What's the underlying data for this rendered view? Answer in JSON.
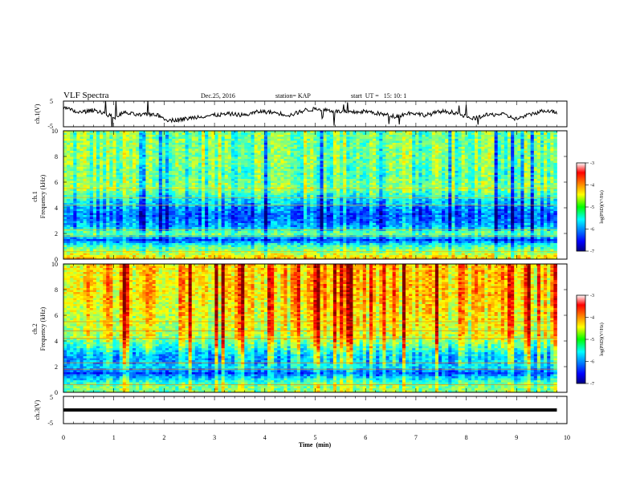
{
  "header": {
    "title": "VLF Spectra",
    "date": "Dec.25, 2016",
    "station": "station= KAP",
    "start": "start  UT =   15: 10: 1"
  },
  "chart_data": [
    {
      "type": "line",
      "ylabel": "ch.1(V)",
      "ylim": [
        -5,
        5
      ],
      "yticks": [
        5,
        -5
      ],
      "xlim": [
        0,
        10
      ],
      "trend_min": [
        0,
        0.3,
        0.6,
        0.8,
        1.0,
        1.2,
        1.5,
        1.8,
        2.1,
        2.4,
        2.7,
        3.0,
        3.3,
        3.6,
        3.9,
        4.2,
        4.5,
        4.8,
        5.1,
        5.4,
        5.7,
        6.0,
        6.3,
        6.6,
        6.9,
        7.2,
        7.5,
        7.8,
        8.1,
        8.4,
        8.7,
        9.0,
        9.3,
        9.6,
        9.8
      ],
      "trend_volts": [
        2.5,
        0.5,
        1.5,
        0.5,
        -1.5,
        0.5,
        -0.5,
        0.0,
        -2.5,
        -2.0,
        -1.0,
        -0.5,
        0.0,
        -0.5,
        1.0,
        0.5,
        -0.5,
        1.5,
        2.0,
        1.0,
        0.5,
        1.0,
        0.0,
        -1.0,
        0.5,
        -0.5,
        1.0,
        0.5,
        -2.0,
        -0.5,
        0.0,
        -2.0,
        0.0,
        1.5,
        0.5
      ]
    },
    {
      "type": "heatmap",
      "ylabel": "ch.1\nFrequency  (kHz)",
      "ylim": [
        0,
        10
      ],
      "yticks": [
        0,
        2,
        4,
        6,
        8,
        10
      ],
      "xlim": [
        0,
        9.8
      ],
      "colorbar": {
        "label": "log(PSD)(V²/Hz)",
        "range": [
          -7,
          -3
        ],
        "ticks": [
          -3,
          -4,
          -5,
          -6,
          -7
        ]
      },
      "band_khz": [
        0,
        0.5,
        1,
        1.5,
        2,
        2.5,
        3,
        3.5,
        4,
        4.5,
        5,
        5.5,
        6,
        6.5,
        7,
        7.5,
        8,
        8.5,
        9,
        9.5,
        10
      ],
      "band_level": [
        -4.2,
        -4.8,
        -5.2,
        -6.2,
        -5.0,
        -5.8,
        -6.0,
        -6.1,
        -5.9,
        -5.6,
        -5.3,
        -4.9,
        -5.0,
        -5.1,
        -5.1,
        -5.0,
        -5.0,
        -5.0,
        -5.0,
        -5.0,
        -5.0
      ]
    },
    {
      "type": "heatmap",
      "ylabel": "ch.2\nFrequency  (kHz)",
      "ylim": [
        0,
        10
      ],
      "yticks": [
        0,
        2,
        4,
        6,
        8,
        10
      ],
      "xlim": [
        0,
        9.8
      ],
      "colorbar": {
        "label": "log(PSD)(V²/Hz)",
        "range": [
          -7,
          -3
        ],
        "ticks": [
          -3,
          -4,
          -5,
          -6,
          -7
        ]
      },
      "band_khz": [
        0,
        0.5,
        1,
        1.5,
        2,
        2.5,
        3,
        3.5,
        4,
        4.5,
        5,
        5.5,
        6,
        6.5,
        7,
        7.5,
        8,
        8.5,
        9,
        9.5,
        10
      ],
      "band_level": [
        -5.0,
        -5.0,
        -5.5,
        -6.2,
        -5.6,
        -5.7,
        -5.6,
        -5.2,
        -4.9,
        -4.6,
        -4.6,
        -4.5,
        -4.5,
        -4.4,
        -4.4,
        -4.3,
        -4.3,
        -4.3,
        -4.3,
        -4.3,
        -4.3
      ]
    },
    {
      "type": "line",
      "ylabel": "ch.3(V)",
      "ylim": [
        -5,
        5
      ],
      "yticks": [
        5,
        0,
        -5
      ],
      "xlim": [
        0,
        10
      ],
      "trend_min": [
        0,
        9.8
      ],
      "trend_volts": [
        0,
        0
      ]
    }
  ],
  "xaxis": {
    "label": "Time  (min)",
    "range": [
      0,
      10
    ],
    "ticks": [
      "0",
      "1",
      "2",
      "3",
      "4",
      "5",
      "6",
      "7",
      "8",
      "9",
      "10"
    ]
  }
}
